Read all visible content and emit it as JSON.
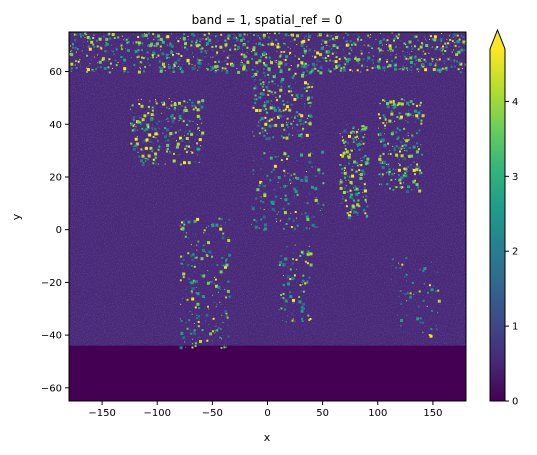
{
  "chart_data": {
    "type": "heatmap",
    "title": "band = 1, spatial_ref = 0",
    "xlabel": "x",
    "ylabel": "y",
    "xlim": [
      -180,
      180
    ],
    "ylim": [
      -65,
      75
    ],
    "x_ticks": [
      -150,
      -100,
      -50,
      0,
      50,
      100,
      150
    ],
    "x_tick_labels": [
      "−150",
      "−100",
      "−50",
      "0",
      "50",
      "100",
      "150"
    ],
    "y_ticks": [
      -60,
      -40,
      -20,
      0,
      20,
      40,
      60
    ],
    "y_tick_labels": [
      "−60",
      "−40",
      "−20",
      "0",
      "20",
      "40",
      "60"
    ],
    "colorbar": {
      "colormap": "viridis",
      "range": [
        0,
        4.7
      ],
      "extend": "max",
      "ticks": [
        0,
        1,
        2,
        3,
        4
      ],
      "tick_labels": [
        "0",
        "1",
        "2",
        "3",
        "4"
      ]
    },
    "summary": {
      "ocean_value": 0.6,
      "antarctica_value": 0.0,
      "hotspots_value": 4.5
    },
    "colors": {
      "viridis": [
        "#440154",
        "#482878",
        "#3e4989",
        "#31688e",
        "#26828e",
        "#1f9e89",
        "#35b779",
        "#6ece58",
        "#b5de2b",
        "#fde725"
      ]
    }
  }
}
